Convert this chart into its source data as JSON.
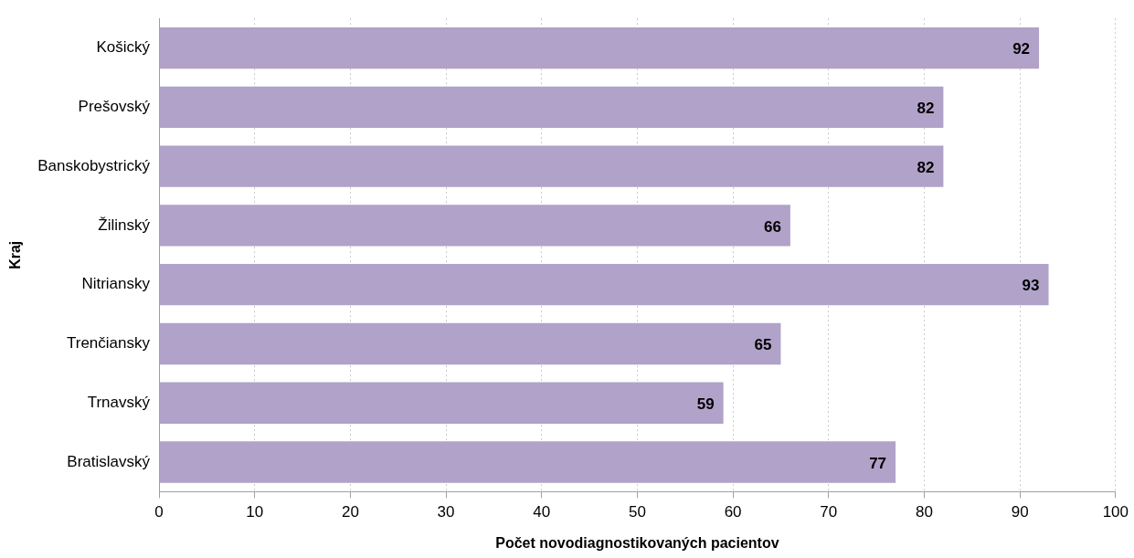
{
  "chart_data": {
    "type": "bar",
    "orientation": "horizontal",
    "xlabel": "Počet novodiagnostikovaných pacientov",
    "ylabel": "Kraj",
    "categories": [
      "Košický",
      "Prešovský",
      "Banskobystrický",
      "Žilinský",
      "Nitriansky",
      "Trenčiansky",
      "Trnavský",
      "Bratislavský"
    ],
    "values": [
      92,
      82,
      82,
      66,
      93,
      65,
      59,
      77
    ],
    "color": "#b0a2c8",
    "xlim": [
      0,
      100
    ],
    "xticks": [
      0,
      10,
      20,
      30,
      40,
      50,
      60,
      70,
      80,
      90,
      100
    ],
    "grid": "x",
    "data_labels": true,
    "legend": false
  }
}
